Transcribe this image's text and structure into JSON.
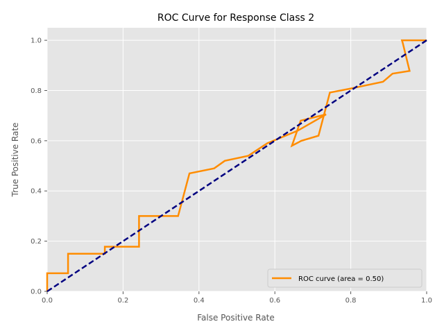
{
  "chart_data": {
    "type": "line",
    "title": "ROC Curve for Response Class 2",
    "xlabel": "False Positive Rate",
    "ylabel": "True Positive Rate",
    "xlim": [
      0.0,
      1.0
    ],
    "ylim": [
      0.0,
      1.05
    ],
    "x_ticks": [
      "0.0",
      "0.2",
      "0.4",
      "0.6",
      "0.8",
      "1.0"
    ],
    "y_ticks": [
      "0.0",
      "0.2",
      "0.4",
      "0.6",
      "0.8",
      "1.0"
    ],
    "grid": true,
    "legend_position": "bottom-right",
    "colors": {
      "background": "#e5e5e5",
      "grid": "#ffffff",
      "roc": "#ff8c00",
      "diagonal": "#000080"
    },
    "series": [
      {
        "name": "ROC curve (area = 0.50)",
        "style": "solid",
        "x": [
          0.0,
          0.0,
          0.055,
          0.055,
          0.152,
          0.152,
          0.242,
          0.242,
          0.345,
          0.375,
          0.44,
          0.468,
          0.53,
          0.58,
          0.66,
          0.735,
          0.668,
          0.645,
          0.67,
          0.715,
          0.745,
          0.8,
          0.885,
          0.91,
          0.955,
          0.937,
          0.935,
          1.0
        ],
        "y": [
          0.0,
          0.072,
          0.072,
          0.15,
          0.15,
          0.178,
          0.178,
          0.3,
          0.3,
          0.47,
          0.49,
          0.52,
          0.54,
          0.59,
          0.64,
          0.705,
          0.68,
          0.58,
          0.6,
          0.62,
          0.792,
          0.808,
          0.835,
          0.867,
          0.878,
          0.99,
          1.0,
          1.0
        ]
      },
      {
        "name": "",
        "style": "dashed",
        "x": [
          0.0,
          1.0
        ],
        "y": [
          0.0,
          1.0
        ]
      }
    ]
  }
}
